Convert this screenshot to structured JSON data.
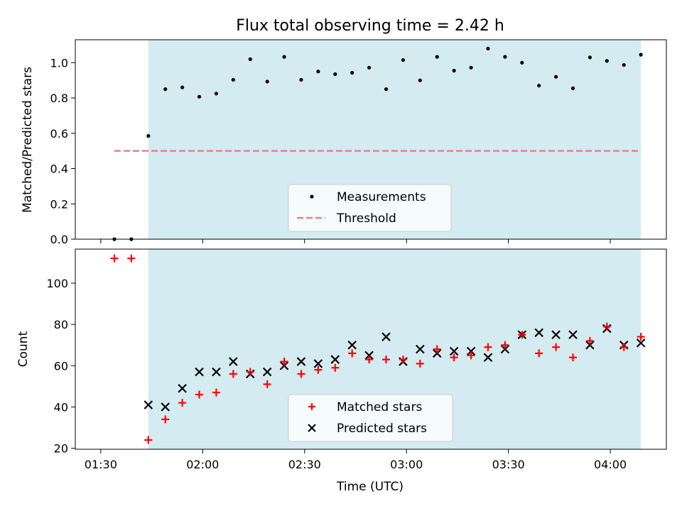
{
  "chart_data": {
    "type": "scatter",
    "title": "Flux total observing time = 2.42 h",
    "xlabel": "Time (UTC)",
    "x_ticks": [
      "01:30",
      "02:00",
      "02:30",
      "03:00",
      "03:30",
      "04:00"
    ],
    "x_tick_minutes": [
      90,
      120,
      150,
      180,
      210,
      240
    ],
    "xlim_minutes": [
      82.5,
      256.5
    ],
    "observing_window_minutes": [
      104,
      249
    ],
    "observing_window_color": "#d3ebf1",
    "x_minutes": [
      94,
      99,
      104,
      109,
      114,
      119,
      124,
      129,
      134,
      139,
      144,
      149,
      154,
      159,
      164,
      169,
      174,
      179,
      184,
      189,
      194,
      199,
      204,
      209,
      214,
      219,
      224,
      229,
      234,
      239,
      244,
      249
    ],
    "panels": [
      {
        "ylabel": "Matched/Predicted stars",
        "ylim": [
          0,
          1.13
        ],
        "yticks": [
          "0.0",
          "0.2",
          "0.4",
          "0.6",
          "0.8",
          "1.0"
        ],
        "ytick_values": [
          0,
          0.2,
          0.4,
          0.6,
          0.8,
          1.0
        ],
        "legend_position": "lower-center",
        "legend": [
          "Measurements",
          "Threshold"
        ],
        "series": [
          {
            "name": "Measurements",
            "marker": "dot",
            "color": "#000000",
            "values": [
              0.0,
              0.0,
              0.585,
              0.85,
              0.86,
              0.807,
              0.825,
              0.903,
              1.02,
              0.893,
              1.033,
              0.903,
              0.95,
              0.935,
              0.943,
              0.972,
              0.85,
              1.015,
              0.9,
              1.033,
              0.955,
              0.972,
              1.08,
              1.033,
              1.0,
              0.87,
              0.92,
              0.855,
              1.03,
              1.01,
              0.987,
              1.045
            ]
          },
          {
            "name": "Threshold",
            "style": "dashed",
            "color": "#f08080",
            "value": 0.5,
            "x_range_minutes": [
              94,
              249
            ]
          }
        ]
      },
      {
        "ylabel": "Count",
        "ylim": [
          19.5,
          116.5
        ],
        "yticks": [
          "20",
          "40",
          "60",
          "80",
          "100"
        ],
        "ytick_values": [
          20,
          40,
          60,
          80,
          100
        ],
        "legend_position": "lower-center",
        "legend": [
          "Matched stars",
          "Predicted stars"
        ],
        "series": [
          {
            "name": "Matched stars",
            "marker": "plus",
            "color": "#ff0000",
            "values": [
              112,
              112,
              24,
              34,
              42,
              46,
              47,
              56,
              57,
              51,
              62,
              56,
              58,
              59,
              66,
              63,
              63,
              63,
              61,
              68,
              64,
              65,
              69,
              70,
              75,
              66,
              69,
              64,
              72,
              79,
              69,
              74
            ]
          },
          {
            "name": "Predicted stars",
            "marker": "x",
            "color": "#000000",
            "values": [
              null,
              null,
              41,
              40,
              49,
              57,
              57,
              62,
              56,
              57,
              60,
              62,
              61,
              63,
              70,
              65,
              74,
              62,
              68,
              66,
              67,
              67,
              64,
              68,
              75,
              76,
              75,
              75,
              70,
              78,
              70,
              71
            ]
          }
        ]
      }
    ]
  }
}
